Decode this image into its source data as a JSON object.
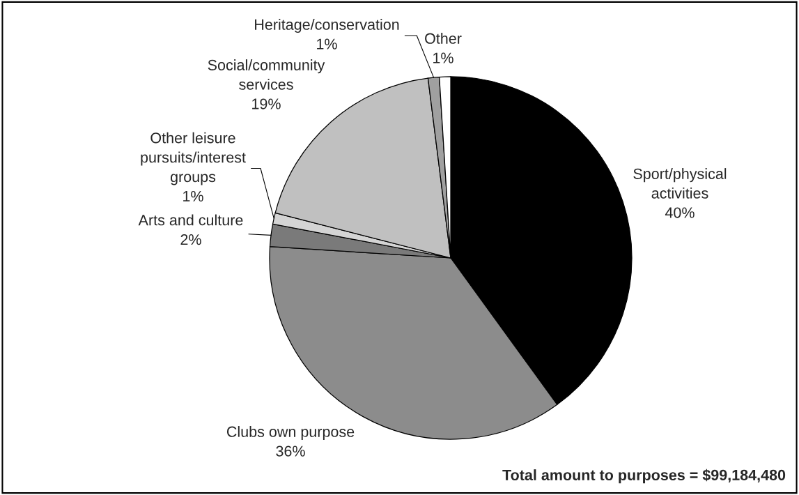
{
  "chart_data": {
    "type": "pie",
    "categories": [
      "Sport/physical\nactivities",
      "Clubs own purpose",
      "Arts and culture",
      "Other leisure\npursuits/interest\ngroups",
      "Social/community\nservices",
      "Heritage/conservation",
      "Other"
    ],
    "values": [
      40,
      36,
      2,
      1,
      19,
      1,
      1
    ],
    "colors": [
      "#000000",
      "#8c8c8c",
      "#7a7a7a",
      "#d4d4d4",
      "#c0c0c0",
      "#a0a0a0",
      "#ffffff"
    ],
    "value_labels": [
      "40%",
      "36%",
      "2%",
      "1%",
      "19%",
      "1%",
      "1%"
    ],
    "annotations": [
      "Total amount to purposes = $99,184,480"
    ]
  }
}
